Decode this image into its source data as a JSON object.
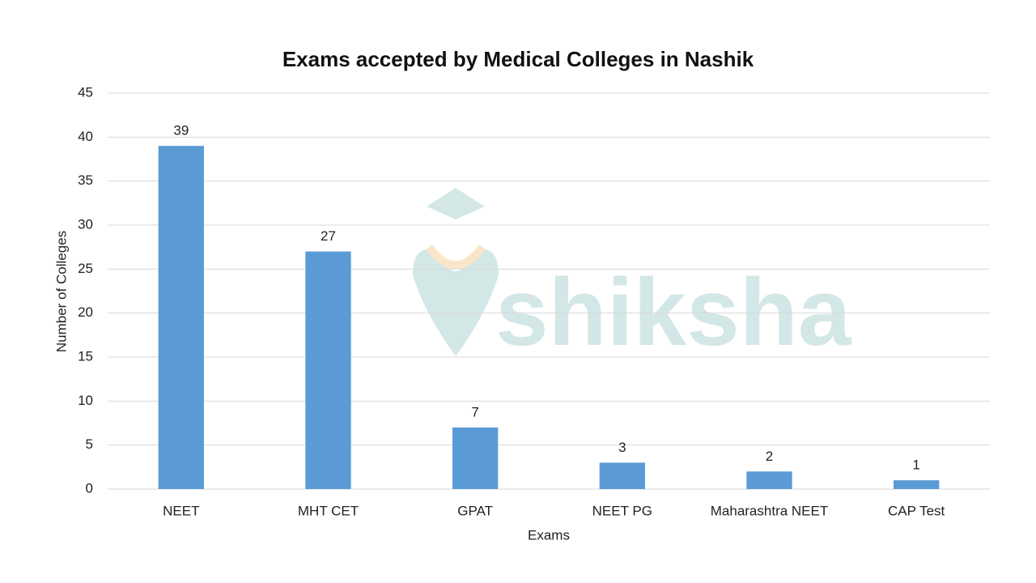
{
  "chart_data": {
    "type": "bar",
    "title": "Exams accepted by Medical Colleges in Nashik",
    "x_label": "Exams",
    "y_label": "Number of Colleges",
    "categories": [
      "NEET",
      "MHT CET",
      "GPAT",
      "NEET PG",
      "Maharashtra NEET",
      "CAP Test"
    ],
    "values": [
      39,
      27,
      7,
      3,
      2,
      1
    ],
    "color": "#5b9bd5",
    "ylim": [
      0,
      45
    ],
    "yticks": [
      0,
      5,
      10,
      15,
      20,
      25,
      30,
      35,
      40,
      45
    ],
    "grid": true,
    "data_labels": true,
    "watermark": "shiksha"
  }
}
